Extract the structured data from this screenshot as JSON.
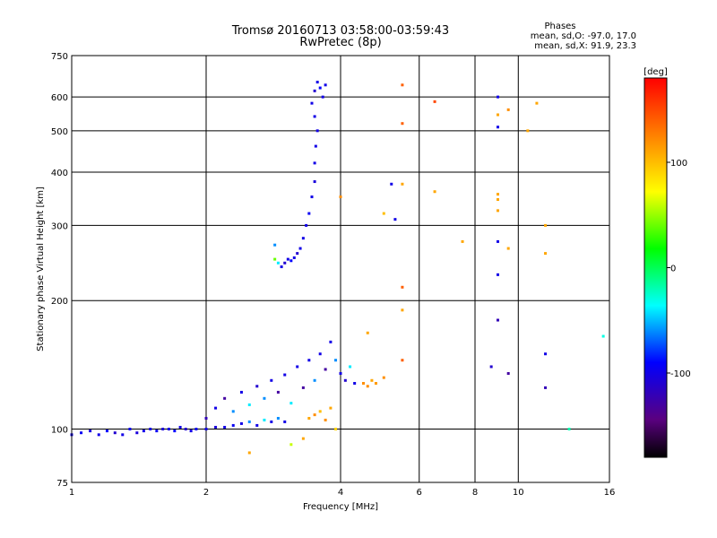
{
  "chart_data": {
    "type": "scatter",
    "title": "Tromsø 20160713 03:58:00-03:59:43",
    "subtitle": "RwPretec (8p)",
    "xlabel": "Frequency [MHz]",
    "ylabel": "Stationary phase Virtual Height [km]",
    "x_scale": "log",
    "y_scale": "log",
    "xlim": [
      1,
      16
    ],
    "ylim": [
      75,
      750
    ],
    "x_ticks": [
      1,
      2,
      4,
      6,
      8,
      10,
      16
    ],
    "y_ticks": [
      75,
      100,
      200,
      300,
      400,
      500,
      600,
      750
    ],
    "grid": true,
    "stats": {
      "heading": "Phases",
      "line1": "mean, sd,O: -97.0, 17.0",
      "line2": "mean, sd,X:  91.9, 23.3"
    },
    "colorbar": {
      "label": "[deg]",
      "range": [
        -180,
        180
      ],
      "ticks": [
        100,
        0,
        -100
      ],
      "ticks_text": [
        "100",
        "0",
        "-100"
      ]
    },
    "series": [
      {
        "points": [
          [
            1.0,
            97,
            -100
          ],
          [
            1.05,
            98,
            -95
          ],
          [
            1.1,
            99,
            -105
          ],
          [
            1.15,
            97,
            -100
          ],
          [
            1.2,
            99,
            -90
          ],
          [
            1.25,
            98,
            -110
          ],
          [
            1.3,
            97,
            -100
          ],
          [
            1.35,
            100,
            -95
          ],
          [
            1.4,
            98,
            -105
          ],
          [
            1.45,
            99,
            -100
          ],
          [
            1.5,
            100,
            -100
          ],
          [
            1.55,
            99,
            -95
          ],
          [
            1.6,
            100,
            -105
          ],
          [
            1.65,
            100,
            -100
          ],
          [
            1.7,
            99,
            -90
          ],
          [
            1.75,
            101,
            -100
          ],
          [
            1.8,
            100,
            -110
          ],
          [
            1.85,
            99,
            -100
          ],
          [
            1.9,
            100,
            -95
          ],
          [
            2.0,
            100,
            -100
          ],
          [
            2.1,
            101,
            -105
          ],
          [
            2.2,
            101,
            -100
          ],
          [
            2.3,
            102,
            -95
          ],
          [
            2.4,
            103,
            -100
          ],
          [
            2.5,
            104,
            -60
          ],
          [
            2.6,
            102,
            -100
          ],
          [
            2.7,
            105,
            -40
          ],
          [
            2.8,
            104,
            -100
          ],
          [
            2.9,
            106,
            -60
          ],
          [
            3.0,
            104,
            -100
          ],
          [
            2.0,
            106,
            -120
          ],
          [
            2.1,
            112,
            -100
          ],
          [
            2.2,
            118,
            -130
          ],
          [
            2.3,
            110,
            -60
          ],
          [
            2.4,
            122,
            -100
          ],
          [
            2.5,
            114,
            -40
          ],
          [
            2.6,
            126,
            -110
          ],
          [
            2.7,
            118,
            -60
          ],
          [
            2.8,
            130,
            -100
          ],
          [
            2.9,
            122,
            -130
          ],
          [
            3.0,
            134,
            -100
          ],
          [
            3.1,
            115,
            -40
          ],
          [
            3.2,
            140,
            -100
          ],
          [
            3.3,
            125,
            -130
          ],
          [
            3.4,
            145,
            -100
          ],
          [
            3.5,
            130,
            -60
          ],
          [
            3.6,
            150,
            -100
          ],
          [
            3.7,
            138,
            -130
          ],
          [
            3.8,
            160,
            -100
          ],
          [
            3.9,
            145,
            -60
          ],
          [
            4.0,
            135,
            -100
          ],
          [
            4.1,
            130,
            -110
          ],
          [
            4.2,
            140,
            -40
          ],
          [
            4.3,
            128,
            -100
          ],
          [
            4.5,
            128,
            120
          ],
          [
            4.6,
            126,
            120
          ],
          [
            4.7,
            130,
            110
          ],
          [
            4.8,
            128,
            115
          ],
          [
            5.0,
            132,
            120
          ],
          [
            3.4,
            106,
            110
          ],
          [
            3.5,
            108,
            120
          ],
          [
            3.6,
            110,
            100
          ],
          [
            3.7,
            105,
            120
          ],
          [
            3.8,
            112,
            110
          ],
          [
            3.3,
            95,
            110
          ],
          [
            3.9,
            100,
            90
          ],
          [
            3.1,
            92,
            60
          ],
          [
            2.5,
            88,
            110
          ],
          [
            2.85,
            250,
            40
          ],
          [
            2.9,
            245,
            -40
          ],
          [
            2.95,
            240,
            -100
          ],
          [
            3.0,
            245,
            -110
          ],
          [
            3.05,
            250,
            -100
          ],
          [
            3.1,
            248,
            -90
          ],
          [
            3.15,
            252,
            -100
          ],
          [
            3.2,
            258,
            -110
          ],
          [
            3.25,
            265,
            -100
          ],
          [
            3.3,
            280,
            -100
          ],
          [
            3.35,
            300,
            -100
          ],
          [
            3.4,
            320,
            -95
          ],
          [
            3.45,
            350,
            -100
          ],
          [
            3.5,
            380,
            -105
          ],
          [
            3.5,
            420,
            -100
          ],
          [
            3.52,
            460,
            -100
          ],
          [
            3.55,
            500,
            -100
          ],
          [
            3.5,
            540,
            -100
          ],
          [
            3.45,
            580,
            -100
          ],
          [
            3.5,
            620,
            -110
          ],
          [
            3.55,
            650,
            -100
          ],
          [
            3.6,
            630,
            -90
          ],
          [
            3.65,
            600,
            -100
          ],
          [
            3.7,
            640,
            -100
          ],
          [
            2.85,
            270,
            -60
          ],
          [
            5.5,
            640,
            140
          ],
          [
            5.5,
            520,
            140
          ],
          [
            6.5,
            585,
            150
          ],
          [
            5.5,
            375,
            110
          ],
          [
            6.5,
            360,
            110
          ],
          [
            5.2,
            375,
            -100
          ],
          [
            5.0,
            320,
            100
          ],
          [
            5.3,
            310,
            -100
          ],
          [
            4.0,
            350,
            120
          ],
          [
            5.5,
            215,
            140
          ],
          [
            7.5,
            275,
            110
          ],
          [
            9.0,
            600,
            -100
          ],
          [
            9.0,
            545,
            110
          ],
          [
            9.0,
            510,
            -100
          ],
          [
            9.5,
            560,
            120
          ],
          [
            9.0,
            355,
            110
          ],
          [
            9.0,
            345,
            110
          ],
          [
            9.0,
            325,
            110
          ],
          [
            9.0,
            275,
            -100
          ],
          [
            9.5,
            265,
            110
          ],
          [
            9.0,
            230,
            -100
          ],
          [
            11.0,
            580,
            110
          ],
          [
            10.5,
            500,
            110
          ],
          [
            11.5,
            300,
            110
          ],
          [
            11.5,
            258,
            110
          ],
          [
            9.0,
            180,
            -120
          ],
          [
            8.7,
            140,
            -110
          ],
          [
            9.5,
            135,
            -130
          ],
          [
            11.5,
            150,
            -100
          ],
          [
            11.5,
            125,
            -120
          ],
          [
            13.0,
            100,
            -20
          ],
          [
            15.5,
            165,
            -30
          ],
          [
            5.5,
            190,
            110
          ],
          [
            4.6,
            168,
            110
          ],
          [
            5.5,
            145,
            140
          ]
        ]
      }
    ]
  }
}
